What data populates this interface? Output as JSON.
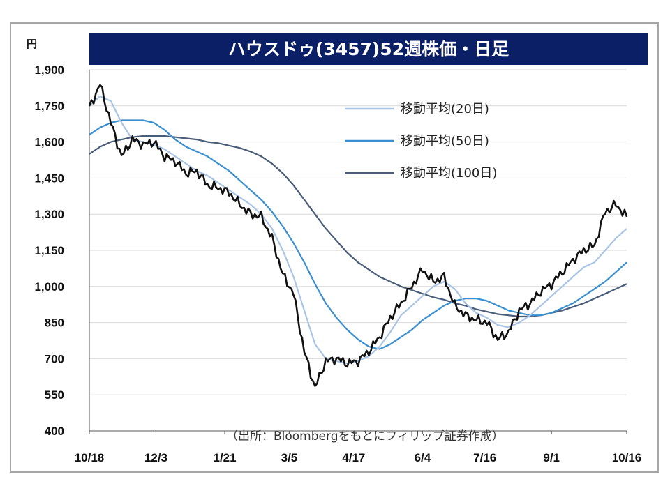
{
  "chart_data": {
    "type": "line",
    "title": "ハウスドゥ(3457)52週株価・日足",
    "unit": "円",
    "source_note": "（出所：Bloombergをもとにフィリップ証券作成）",
    "ylim": [
      400,
      1900
    ],
    "y_ticks": [
      "1,900",
      "1,750",
      "1,600",
      "1,450",
      "1,300",
      "1,150",
      "1,000",
      "850",
      "700",
      "550",
      "400"
    ],
    "y_tick_values": [
      1900,
      1750,
      1600,
      1450,
      1300,
      1150,
      1000,
      850,
      700,
      550,
      400
    ],
    "x_tick_labels": [
      "10/18",
      "12/3",
      "1/21",
      "3/5",
      "4/17",
      "6/4",
      "7/16",
      "9/1",
      "10/16"
    ],
    "grid": "horizontal",
    "legend_position": "top-right",
    "x_index_range": [
      0,
      250
    ],
    "x_tick_index": [
      0,
      31,
      63,
      93,
      123,
      155,
      184,
      215,
      250
    ],
    "series": [
      {
        "name": "日足",
        "color": "#111111",
        "index": [
          0,
          5,
          10,
          15,
          20,
          25,
          30,
          35,
          40,
          45,
          50,
          55,
          60,
          65,
          70,
          75,
          80,
          85,
          90,
          95,
          100,
          105,
          110,
          115,
          120,
          125,
          130,
          135,
          140,
          145,
          150,
          155,
          160,
          165,
          170,
          175,
          180,
          185,
          190,
          195,
          200,
          205,
          210,
          215,
          220,
          225,
          230,
          235,
          240,
          245,
          250
        ],
        "values": [
          1740,
          1840,
          1680,
          1540,
          1610,
          1590,
          1600,
          1540,
          1520,
          1470,
          1480,
          1420,
          1410,
          1390,
          1340,
          1300,
          1290,
          1200,
          1050,
          970,
          730,
          580,
          690,
          700,
          680,
          690,
          730,
          790,
          870,
          930,
          1000,
          1070,
          1020,
          1040,
          920,
          880,
          860,
          850,
          780,
          810,
          900,
          930,
          980,
          1010,
          1060,
          1110,
          1150,
          1170,
          1310,
          1340,
          1290
        ]
      },
      {
        "name": "移動平均(20日)",
        "color": "#a9c4e4",
        "index": [
          0,
          5,
          10,
          15,
          20,
          25,
          30,
          35,
          40,
          45,
          50,
          55,
          60,
          65,
          70,
          75,
          80,
          85,
          90,
          95,
          100,
          105,
          110,
          115,
          120,
          125,
          130,
          135,
          140,
          145,
          150,
          155,
          160,
          165,
          170,
          175,
          180,
          185,
          190,
          195,
          200,
          205,
          210,
          215,
          220,
          225,
          230,
          235,
          240,
          245,
          250
        ],
        "values": [
          1750,
          1790,
          1770,
          1680,
          1610,
          1600,
          1590,
          1570,
          1540,
          1510,
          1480,
          1460,
          1430,
          1400,
          1370,
          1340,
          1300,
          1240,
          1150,
          1040,
          900,
          760,
          700,
          690,
          680,
          690,
          710,
          750,
          810,
          880,
          920,
          960,
          1000,
          1020,
          990,
          930,
          890,
          870,
          840,
          830,
          850,
          880,
          920,
          960,
          1000,
          1040,
          1080,
          1100,
          1150,
          1200,
          1240
        ]
      },
      {
        "name": "移動平均(50日)",
        "color": "#3a8fd0",
        "index": [
          0,
          5,
          10,
          15,
          20,
          25,
          30,
          35,
          40,
          45,
          50,
          55,
          60,
          65,
          70,
          75,
          80,
          85,
          90,
          95,
          100,
          105,
          110,
          115,
          120,
          125,
          130,
          135,
          140,
          145,
          150,
          155,
          160,
          165,
          170,
          175,
          180,
          185,
          190,
          195,
          200,
          205,
          210,
          215,
          220,
          225,
          230,
          235,
          240,
          245,
          250
        ],
        "values": [
          1630,
          1660,
          1680,
          1690,
          1690,
          1690,
          1680,
          1650,
          1610,
          1580,
          1560,
          1540,
          1510,
          1480,
          1440,
          1400,
          1360,
          1310,
          1250,
          1180,
          1100,
          1010,
          930,
          870,
          820,
          780,
          750,
          740,
          760,
          790,
          820,
          860,
          890,
          920,
          940,
          950,
          950,
          940,
          920,
          900,
          890,
          880,
          880,
          890,
          910,
          930,
          960,
          990,
          1020,
          1060,
          1100
        ]
      },
      {
        "name": "移動平均(100日)",
        "color": "#4a5d78",
        "index": [
          0,
          5,
          10,
          15,
          20,
          25,
          30,
          35,
          40,
          45,
          50,
          55,
          60,
          65,
          70,
          75,
          80,
          85,
          90,
          95,
          100,
          105,
          110,
          115,
          120,
          125,
          130,
          135,
          140,
          145,
          150,
          155,
          160,
          165,
          170,
          175,
          180,
          185,
          190,
          195,
          200,
          205,
          210,
          215,
          220,
          225,
          230,
          235,
          240,
          245,
          250
        ],
        "values": [
          1550,
          1580,
          1600,
          1610,
          1620,
          1625,
          1625,
          1625,
          1620,
          1615,
          1610,
          1600,
          1595,
          1585,
          1575,
          1560,
          1540,
          1510,
          1470,
          1420,
          1360,
          1300,
          1240,
          1190,
          1140,
          1100,
          1070,
          1040,
          1020,
          1000,
          985,
          970,
          955,
          945,
          930,
          920,
          905,
          895,
          885,
          880,
          875,
          875,
          880,
          890,
          900,
          915,
          930,
          950,
          970,
          990,
          1010
        ]
      }
    ]
  }
}
